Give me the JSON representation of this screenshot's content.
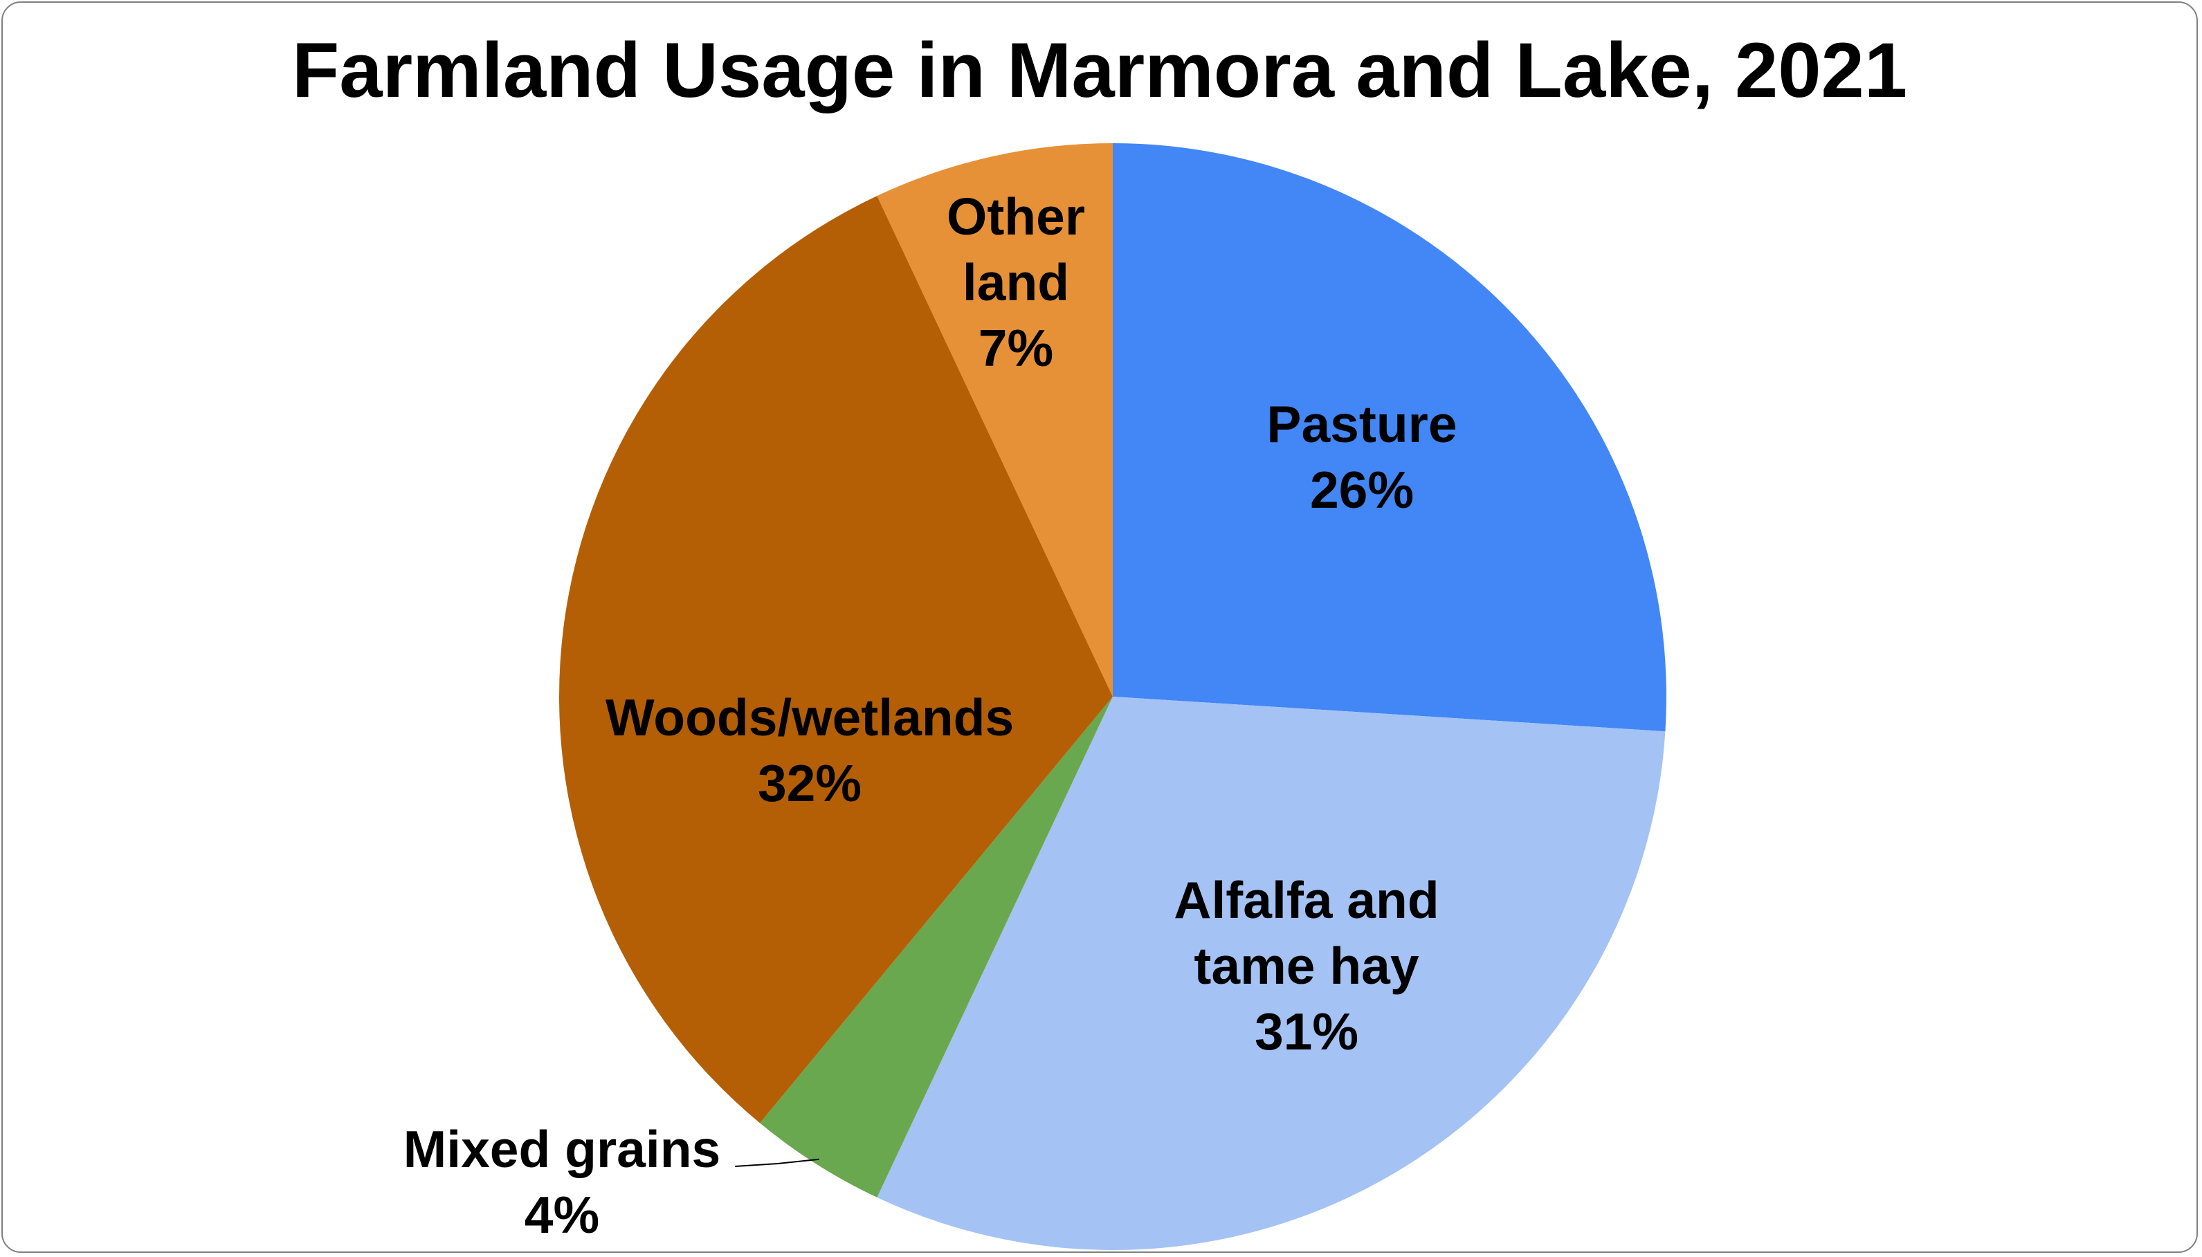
{
  "chart_data": {
    "type": "pie",
    "title": "Farmland Usage in Marmora and Lake, 2021",
    "slices": [
      {
        "label": "Pasture",
        "value": 26,
        "display": "26%",
        "color": "#4287f5"
      },
      {
        "label": "Alfalfa and tame hay",
        "value": 31,
        "display": "31%",
        "color": "#a4c2f4"
      },
      {
        "label": "Mixed grains",
        "value": 4,
        "display": "4%",
        "color": "#6aa84f"
      },
      {
        "label": "Woods/wetlands",
        "value": 32,
        "display": "32%",
        "color": "#b45f06"
      },
      {
        "label": "Other land",
        "value": 7,
        "display": "7%",
        "color": "#e69138"
      }
    ],
    "start_angle": "12 o'clock",
    "direction": "clockwise",
    "legend": "none",
    "data_labels": "category name and percentage"
  }
}
